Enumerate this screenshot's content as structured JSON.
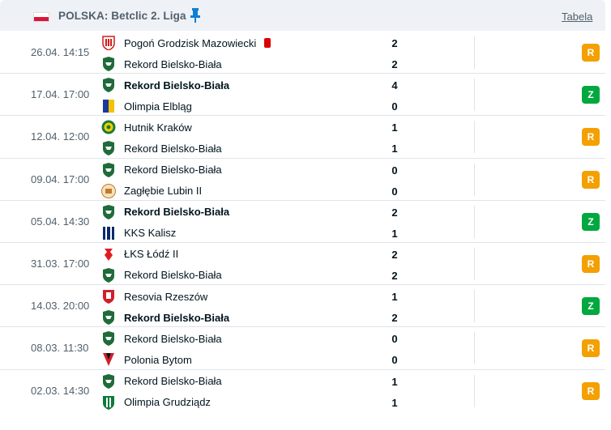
{
  "header": {
    "country_league": "POLSKA: Betclic 2. Liga",
    "table_link": "Tabela"
  },
  "colors": {
    "draw": "#f3a000",
    "win": "#00a83f",
    "red_card": "#dc0000"
  },
  "matches": [
    {
      "date": "26.04. 14:15",
      "home": "Pogoń Grodzisk Mazowiecki",
      "away": "Rekord Bielsko-Biała",
      "home_score": "2",
      "away_score": "2",
      "result": "R",
      "bold": "none",
      "home_crest": "pogon-crest",
      "away_crest": "rekord-crest",
      "home_red_card": true
    },
    {
      "date": "17.04. 17:00",
      "home": "Rekord Bielsko-Biała",
      "away": "Olimpia Elbląg",
      "home_score": "4",
      "away_score": "0",
      "result": "Z",
      "bold": "home",
      "home_crest": "rekord-crest",
      "away_crest": "olimpia-elblag-crest"
    },
    {
      "date": "12.04. 12:00",
      "home": "Hutnik Kraków",
      "away": "Rekord Bielsko-Biała",
      "home_score": "1",
      "away_score": "1",
      "result": "R",
      "bold": "none",
      "home_crest": "hutnik-crest",
      "away_crest": "rekord-crest"
    },
    {
      "date": "09.04. 17:00",
      "home": "Rekord Bielsko-Biała",
      "away": "Zagłębie Lubin II",
      "home_score": "0",
      "away_score": "0",
      "result": "R",
      "bold": "none",
      "home_crest": "rekord-crest",
      "away_crest": "zaglebie-crest"
    },
    {
      "date": "05.04. 14:30",
      "home": "Rekord Bielsko-Biała",
      "away": "KKS Kalisz",
      "home_score": "2",
      "away_score": "1",
      "result": "Z",
      "bold": "home",
      "home_crest": "rekord-crest",
      "away_crest": "kks-kalisz-crest"
    },
    {
      "date": "31.03. 17:00",
      "home": "ŁKS Łódź II",
      "away": "Rekord Bielsko-Biała",
      "home_score": "2",
      "away_score": "2",
      "result": "R",
      "bold": "none",
      "home_crest": "lks-crest",
      "away_crest": "rekord-crest"
    },
    {
      "date": "14.03. 20:00",
      "home": "Resovia Rzeszów",
      "away": "Rekord Bielsko-Biała",
      "home_score": "1",
      "away_score": "2",
      "result": "Z",
      "bold": "away",
      "home_crest": "resovia-crest",
      "away_crest": "rekord-crest"
    },
    {
      "date": "08.03. 11:30",
      "home": "Rekord Bielsko-Biała",
      "away": "Polonia Bytom",
      "home_score": "0",
      "away_score": "0",
      "result": "R",
      "bold": "none",
      "home_crest": "rekord-crest",
      "away_crest": "polonia-crest"
    },
    {
      "date": "02.03. 14:30",
      "home": "Rekord Bielsko-Biała",
      "away": "Olimpia Grudziądz",
      "home_score": "1",
      "away_score": "1",
      "result": "R",
      "bold": "none",
      "home_crest": "rekord-crest",
      "away_crest": "olimpia-grudziadz-crest"
    }
  ]
}
